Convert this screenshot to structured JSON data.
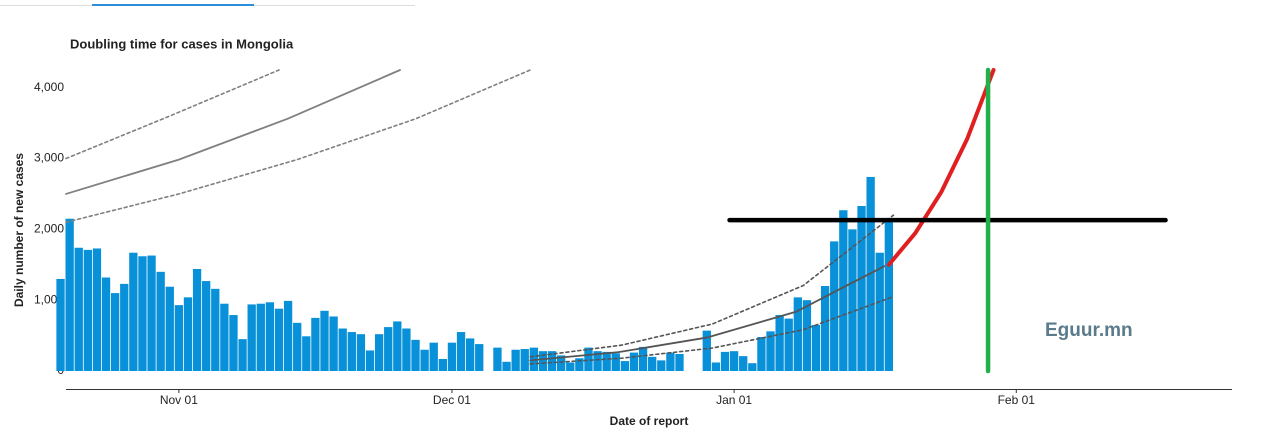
{
  "chart_data": {
    "type": "bar",
    "title": "Doubling time for cases in Mongolia",
    "ylabel": "Daily number of new cases",
    "xlabel": "Date of report",
    "watermark": "Eguur.mn",
    "xlim": [
      -12.4,
      115.7
    ],
    "ylim": [
      0,
      4250
    ],
    "xticks": [
      {
        "value": 0,
        "label": "Nov 01"
      },
      {
        "value": 30,
        "label": "Dec 01"
      },
      {
        "value": 61,
        "label": "Jan 01"
      },
      {
        "value": 92,
        "label": "Feb 01"
      }
    ],
    "yticks": [
      0,
      {
        "value": 1000,
        "label": "1,000"
      },
      {
        "value": 2000,
        "label": "2,000"
      },
      {
        "value": 3000,
        "label": "3,000"
      },
      {
        "value": 4000,
        "label": "4,000"
      }
    ],
    "grid": false,
    "series": [
      {
        "type": "bar",
        "color": "#0890d8",
        "x": [
          -13,
          -12,
          -11,
          -10,
          -9,
          -8,
          -7,
          -6,
          -5,
          -4,
          -3,
          -2,
          -1,
          0,
          1,
          2,
          3,
          4,
          5,
          6,
          7,
          8,
          9,
          10,
          11,
          12,
          13,
          14,
          15,
          16,
          17,
          18,
          19,
          20,
          21,
          22,
          23,
          24,
          25,
          26,
          27,
          28,
          29,
          30,
          31,
          32,
          33,
          35,
          36,
          37,
          38,
          39,
          40,
          41,
          42,
          43,
          44,
          45,
          46,
          47,
          48,
          49,
          50,
          51,
          52,
          53,
          54,
          55,
          58,
          59,
          60,
          61,
          62,
          63,
          64,
          65,
          66,
          67,
          68,
          69,
          70,
          71,
          72,
          73,
          74,
          75,
          76,
          77,
          78
        ],
        "values": [
          1300,
          2150,
          1740,
          1710,
          1730,
          1320,
          1100,
          1230,
          1670,
          1620,
          1630,
          1400,
          1190,
          930,
          1040,
          1440,
          1270,
          1160,
          950,
          790,
          450,
          940,
          950,
          970,
          880,
          990,
          680,
          490,
          750,
          850,
          770,
          600,
          550,
          520,
          290,
          520,
          620,
          700,
          600,
          440,
          300,
          400,
          170,
          400,
          550,
          460,
          380,
          330,
          130,
          300,
          310,
          330,
          280,
          280,
          220,
          120,
          180,
          330,
          280,
          270,
          250,
          140,
          260,
          340,
          200,
          150,
          260,
          240,
          570,
          120,
          270,
          280,
          210,
          110,
          480,
          560,
          790,
          740,
          1040,
          1000,
          650,
          1200,
          1830,
          2270,
          2000,
          2330,
          2740,
          1670,
          2140
        ]
      },
      {
        "type": "line",
        "color": "#808080",
        "line_style": "solid",
        "x": [
          -12.4,
          0,
          12,
          24.3
        ],
        "values": [
          2500,
          2985,
          3564,
          4250
        ]
      },
      {
        "type": "line",
        "color": "#808080",
        "line_style": "dotted",
        "x": [
          -12.4,
          -1,
          11
        ],
        "values": [
          3000,
          3600,
          4250
        ]
      },
      {
        "type": "line",
        "color": "#808080",
        "line_style": "dotted",
        "x": [
          -12.4,
          0,
          13,
          26,
          38.6
        ],
        "values": [
          2100,
          2500,
          2985,
          3560,
          4250
        ]
      },
      {
        "type": "line",
        "color": "#555555",
        "line_style": "solid",
        "x": [
          38.6,
          48.3,
          58,
          67.8,
          77.5
        ],
        "values": [
          150,
          266,
          472,
          836,
          1480
        ]
      },
      {
        "type": "line",
        "color": "#555555",
        "line_style": "dotted",
        "x": [
          38.6,
          48.6,
          58.6,
          68.6,
          78.5
        ],
        "values": [
          200,
          364,
          663,
          1207,
          2200
        ]
      },
      {
        "type": "line",
        "color": "#555555",
        "line_style": "dotted",
        "x": [
          38.6,
          48.6,
          58.6,
          68.6,
          78.5
        ],
        "values": [
          100,
          180,
          324,
          583,
          1050
        ]
      },
      {
        "type": "line",
        "color": "#e02020",
        "line_style": "thick",
        "x": [
          78,
          80.9,
          83.75,
          86.6,
          89.5
        ],
        "values": [
          1500,
          1946,
          2524,
          3275,
          4250
        ]
      },
      {
        "type": "line",
        "color": "#000000",
        "line_style": "heavy",
        "x": [
          60.5,
          108.4
        ],
        "values": [
          2130,
          2130
        ]
      },
      {
        "type": "line",
        "color": "#22b04a",
        "line_style": "heavy",
        "x": [
          88.9,
          88.9
        ],
        "values": [
          0,
          4250
        ]
      }
    ]
  }
}
